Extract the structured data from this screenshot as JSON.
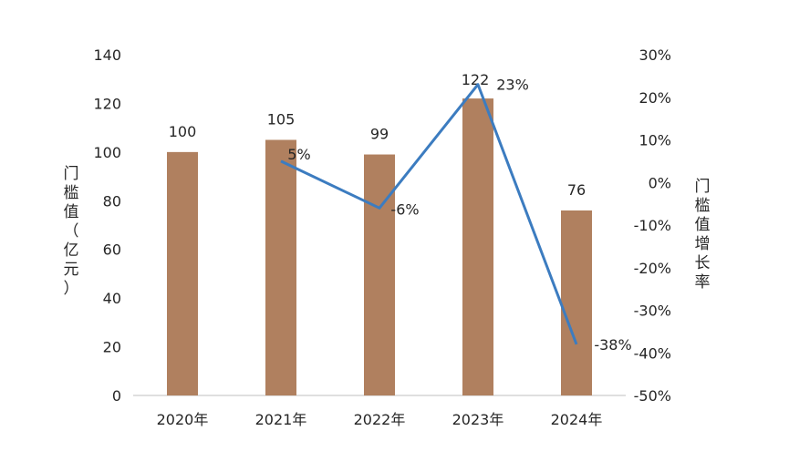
{
  "chart_data": {
    "type": "bar",
    "categories": [
      "2020年",
      "2021年",
      "2022年",
      "2023年",
      "2024年"
    ],
    "series": [
      {
        "type": "bar",
        "axis": "left",
        "values": [
          100,
          105,
          99,
          122,
          76
        ],
        "labels": [
          "100",
          "105",
          "99",
          "122",
          "76"
        ]
      },
      {
        "type": "line",
        "axis": "right",
        "values": [
          null,
          5,
          -6,
          23,
          -38
        ],
        "labels": [
          "",
          "5%",
          "-6%",
          "23%",
          "-38%"
        ]
      }
    ],
    "ylabel": "门槛值（亿元）",
    "y2label": "门槛值增长率",
    "ylim": [
      0,
      140
    ],
    "y2lim": [
      -50,
      30
    ],
    "yticks": [
      "0",
      "20",
      "40",
      "60",
      "80",
      "100",
      "120",
      "140"
    ],
    "y2ticks": [
      "-50%",
      "-40%",
      "-30%",
      "-20%",
      "-10%",
      "0%",
      "10%",
      "20%",
      "30%"
    ],
    "grid": false,
    "legend": "none"
  },
  "colors": {
    "bar": "#B0805F",
    "line": "#3C7CC0",
    "axis": "#BFBFBF"
  }
}
